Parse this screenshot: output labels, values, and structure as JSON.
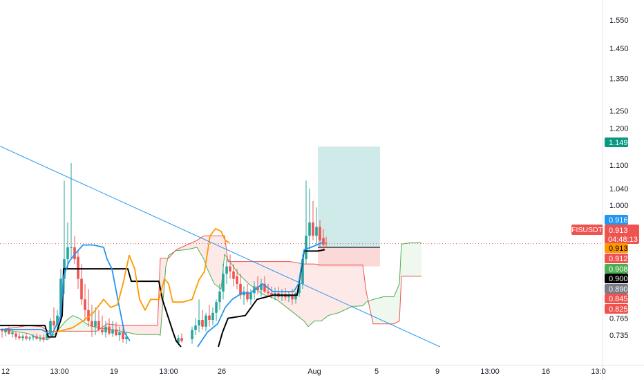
{
  "chart_data": {
    "type": "candlestick",
    "symbol": "FISUSDT",
    "countdown": "04:48:13",
    "last_price": 0.913,
    "y_scale": "log",
    "ylim": [
      0.715,
      1.6
    ],
    "y_ticks": [
      1.55,
      1.45,
      1.35,
      1.25,
      1.2,
      1.1,
      1.04,
      1.0,
      0.765,
      0.735
    ],
    "y_tick_labels": [
      "1.550",
      "1.450",
      "1.350",
      "1.250",
      "1.200",
      "1.100",
      "1.040",
      "1.000",
      "0.765",
      "0.735"
    ],
    "x_tick_labels": [
      "12",
      "13:00",
      "19",
      "13:00",
      "26",
      "Aug",
      "5",
      "9",
      "13:00",
      "16",
      "13:0"
    ],
    "price_tags": [
      {
        "label": "1.149",
        "value": 1.149,
        "color": "#089981",
        "text_color": "#ffffff"
      },
      {
        "label": "0.916",
        "value": 0.916,
        "color": "#2196f3",
        "text_color": "#ffffff"
      },
      {
        "label": "0.913",
        "value": 0.913,
        "color": "#ef5350",
        "text_color": "#ffffff"
      },
      {
        "label": "0.913",
        "value": 0.913,
        "color": "#ff9800",
        "text_color": "#000000"
      },
      {
        "label": "0.912",
        "value": 0.912,
        "color": "#ef5350",
        "text_color": "#ffffff"
      },
      {
        "label": "0.908",
        "value": 0.908,
        "color": "#4caf50",
        "text_color": "#ffffff"
      },
      {
        "label": "0.900",
        "value": 0.9,
        "color": "#000000",
        "text_color": "#ffffff"
      },
      {
        "label": "0.890",
        "value": 0.89,
        "color": "#787b86",
        "text_color": "#ffffff"
      },
      {
        "label": "0.845",
        "value": 0.845,
        "color": "#ef5350",
        "text_color": "#ffffff"
      },
      {
        "label": "0.825",
        "value": 0.825,
        "color": "#ef5350",
        "text_color": "#ffffff"
      }
    ],
    "position": {
      "type": "long",
      "entry": 0.905,
      "target": 1.149,
      "stop": 0.865
    },
    "trendline": {
      "from_price": 1.15,
      "to_price": 0.715
    },
    "indicator": {
      "name": "Ichimoku",
      "lines": [
        "conversion",
        "base",
        "lagging",
        "span_a",
        "span_b"
      ]
    },
    "grid": false,
    "colors": {
      "up": "#26a69a",
      "down": "#ef5350",
      "conversion": "#2196f3",
      "base": "#000000",
      "lagging": "#ff9800",
      "cloud_bull": "#4caf50",
      "cloud_bear": "#ef5350",
      "trendline": "#2196f3"
    }
  }
}
